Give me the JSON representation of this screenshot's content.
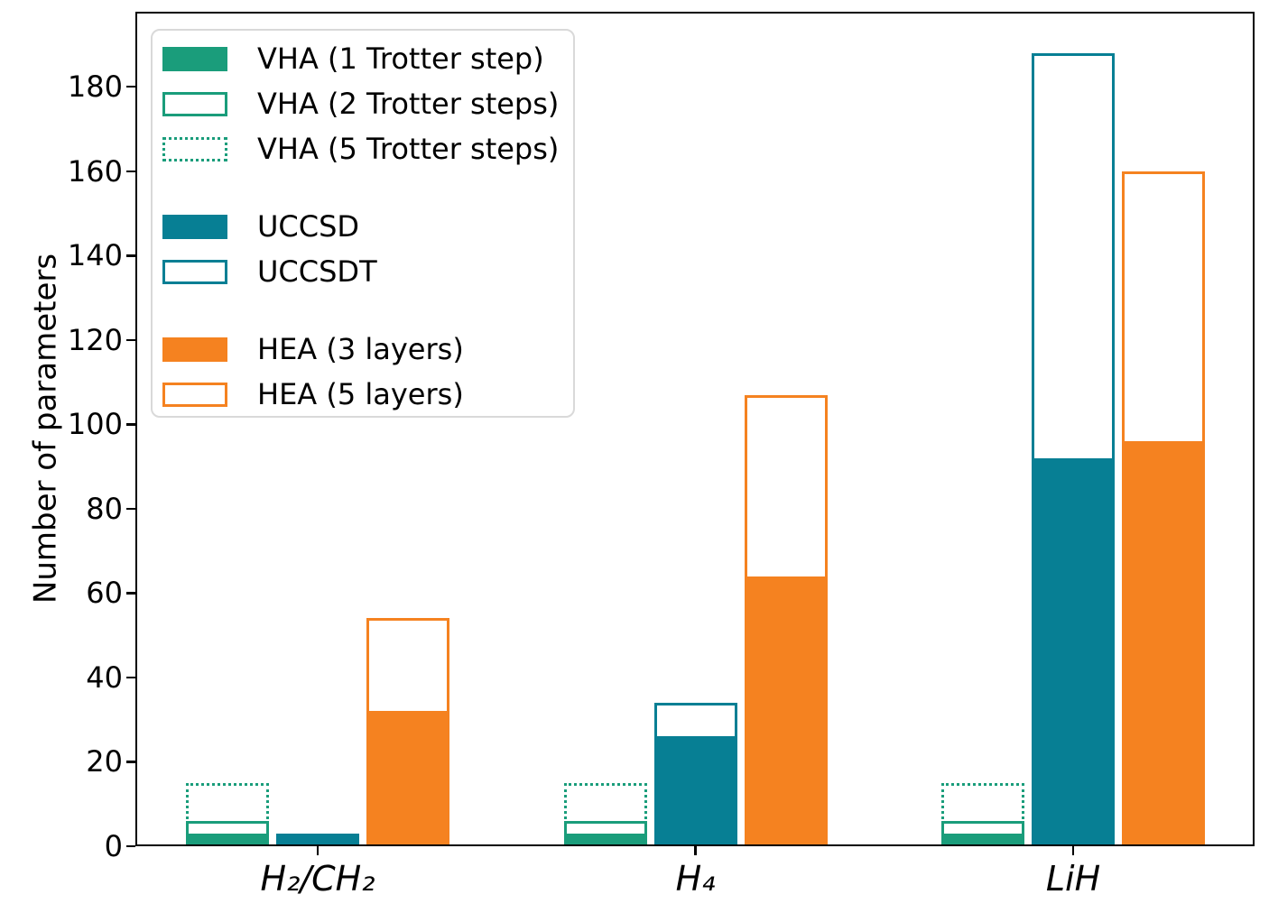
{
  "figure": {
    "background": "#ffffff"
  },
  "colors": {
    "vha_green": "#1a9d7b",
    "uccsd_teal": "#077f94",
    "hea_orange": "#f58220",
    "axis": "#000000",
    "legend_border": "#d9d9d9"
  },
  "chart_data": {
    "type": "bar",
    "title": "",
    "xlabel": "",
    "ylabel": "Number of parameters",
    "ylim": [
      0,
      197.8
    ],
    "yticks": [
      0,
      20,
      40,
      60,
      80,
      100,
      120,
      140,
      160,
      180
    ],
    "categories": [
      "H₂/CH₂",
      "H₄",
      "LiH"
    ],
    "grid": false,
    "legend_position": "upper left",
    "series": [
      {
        "name": "VHA (1 Trotter step)",
        "style": "filled",
        "color": "#1a9d7b",
        "slot": 0,
        "values": [
          3,
          3,
          3
        ]
      },
      {
        "name": "VHA (2 Trotter steps)",
        "style": "outline",
        "color": "#1a9d7b",
        "slot": 0,
        "values": [
          6,
          6,
          6
        ]
      },
      {
        "name": "VHA (5 Trotter steps)",
        "style": "dotted",
        "color": "#1a9d7b",
        "slot": 0,
        "values": [
          15,
          15,
          15
        ]
      },
      {
        "name": "UCCSD",
        "style": "filled",
        "color": "#077f94",
        "slot": 1,
        "values": [
          3,
          26,
          92
        ]
      },
      {
        "name": "UCCSDT",
        "style": "outline",
        "color": "#077f94",
        "slot": 1,
        "values": [
          3,
          34,
          188
        ]
      },
      {
        "name": "HEA (3 layers)",
        "style": "filled",
        "color": "#f58220",
        "slot": 2,
        "values": [
          32,
          64,
          96
        ]
      },
      {
        "name": "HEA (5 layers)",
        "style": "outline",
        "color": "#f58220",
        "slot": 2,
        "values": [
          54,
          107,
          160
        ]
      }
    ],
    "legend_groups": [
      [
        0,
        1,
        2
      ],
      [
        3,
        4
      ],
      [
        5,
        6
      ]
    ]
  }
}
